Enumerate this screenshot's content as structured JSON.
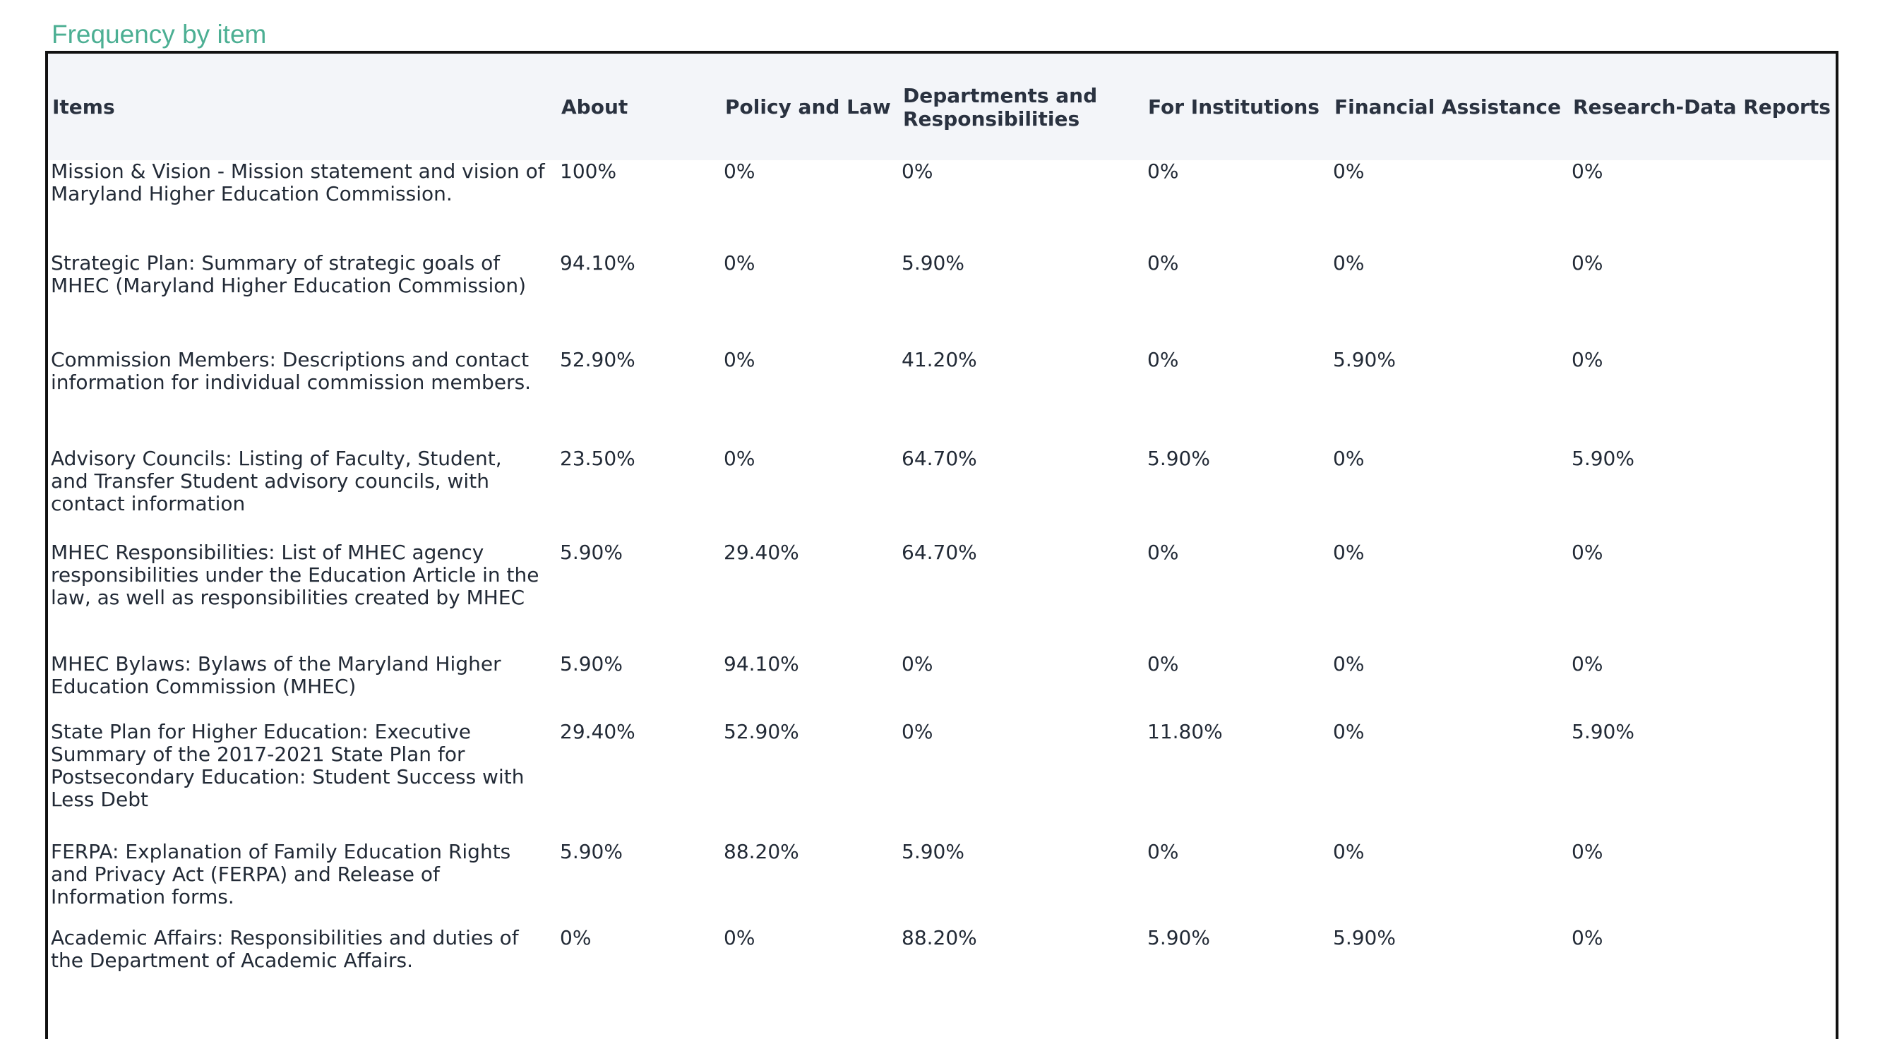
{
  "section_title": "Frequency by item",
  "table": {
    "headers": {
      "items": "Items",
      "about": "About",
      "policy": "Policy and Law",
      "departments": "Departments and\nResponsibilities",
      "institutions": "For Institutions",
      "financial": "Financial Assistance",
      "research": "Research-Data Reports"
    },
    "rows": [
      {
        "item": "Mission & Vision - Mission statement and vision of Maryland Higher Education Commission.",
        "about": "100%",
        "policy": "0%",
        "departments": "0%",
        "institutions": "0%",
        "financial": "0%",
        "research": "0%"
      },
      {
        "item": "Strategic Plan: Summary of strategic goals of MHEC (Maryland Higher Education Commission)",
        "about": "94.10%",
        "policy": "0%",
        "departments": "5.90%",
        "institutions": "0%",
        "financial": "0%",
        "research": "0%"
      },
      {
        "item": "Commission Members: Descriptions and contact information for individual commission members.",
        "about": "52.90%",
        "policy": "0%",
        "departments": "41.20%",
        "institutions": "0%",
        "financial": "5.90%",
        "research": "0%"
      },
      {
        "item": "Advisory Councils: Listing of Faculty, Student, and Transfer Student advisory councils, with contact information",
        "about": "23.50%",
        "policy": "0%",
        "departments": "64.70%",
        "institutions": "5.90%",
        "financial": "0%",
        "research": "5.90%"
      },
      {
        "item": "MHEC Responsibilities: List of MHEC agency responsibilities under the Education Article in the law, as well as responsibilities created by MHEC",
        "about": "5.90%",
        "policy": "29.40%",
        "departments": "64.70%",
        "institutions": "0%",
        "financial": "0%",
        "research": "0%"
      },
      {
        "item": "MHEC Bylaws: Bylaws of the Maryland Higher Education Commission (MHEC)",
        "about": "5.90%",
        "policy": "94.10%",
        "departments": "0%",
        "institutions": "0%",
        "financial": "0%",
        "research": "0%"
      },
      {
        "item": "State Plan for Higher Education: Executive Summary of the 2017-2021 State Plan for Postsecondary Education: Student Success with Less Debt",
        "about": "29.40%",
        "policy": "52.90%",
        "departments": "0%",
        "institutions": "11.80%",
        "financial": "0%",
        "research": "5.90%"
      },
      {
        "item": "FERPA: Explanation of Family Education Rights and Privacy Act (FERPA) and Release of Information forms.",
        "about": "5.90%",
        "policy": "88.20%",
        "departments": "5.90%",
        "institutions": "0%",
        "financial": "0%",
        "research": "0%"
      },
      {
        "item": "Academic Affairs: Responsibilities and duties of the Department of Academic Affairs.",
        "about": "0%",
        "policy": "0%",
        "departments": "88.20%",
        "institutions": "5.90%",
        "financial": "5.90%",
        "research": "0%"
      }
    ]
  }
}
